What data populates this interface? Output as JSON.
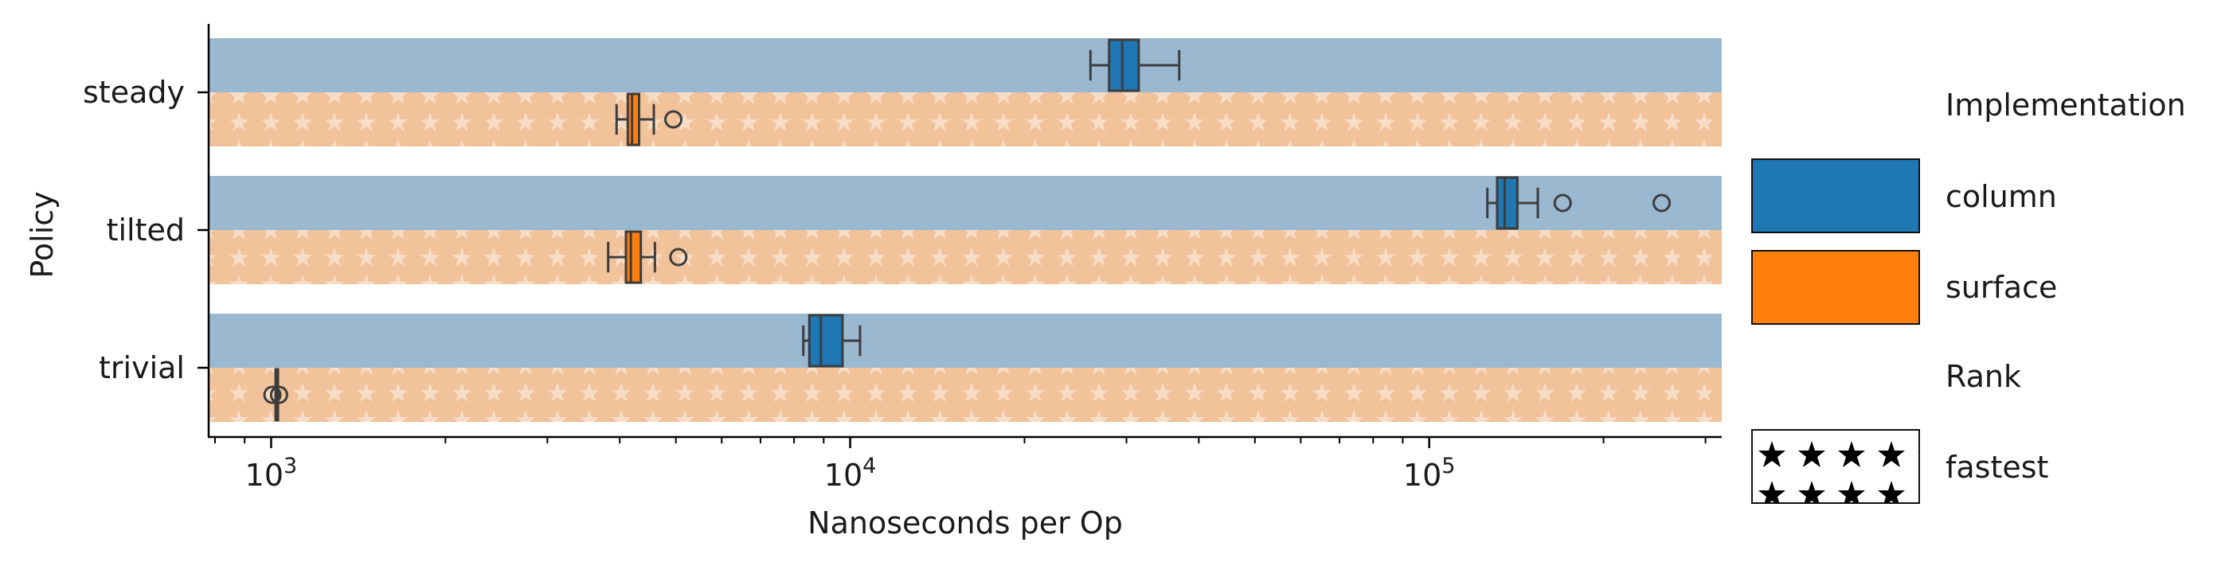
{
  "chart_data": {
    "type": "boxplot",
    "orientation": "horizontal",
    "xlabel": "Nanoseconds per Op",
    "ylabel": "Policy",
    "xscale": "log",
    "xlim": [
      780,
      320000
    ],
    "x_ticks": [
      {
        "value": 1000,
        "base": "10",
        "exp": "3"
      },
      {
        "value": 10000,
        "base": "10",
        "exp": "4"
      },
      {
        "value": 100000,
        "base": "10",
        "exp": "5"
      }
    ],
    "categories": [
      "steady",
      "tilted",
      "trivial"
    ],
    "series": [
      {
        "name": "column",
        "color": "#1f77b4",
        "band_color": "#9ab8d0",
        "boxes": [
          {
            "category": "steady",
            "whislo": 26000,
            "q1": 28000,
            "med": 29500,
            "q3": 31500,
            "whishi": 37000,
            "fliers": []
          },
          {
            "category": "tilted",
            "whislo": 126000,
            "q1": 131000,
            "med": 135000,
            "q3": 142000,
            "whishi": 154000,
            "fliers": [
              170000,
              252000
            ]
          },
          {
            "category": "trivial",
            "whislo": 8300,
            "q1": 8500,
            "med": 8900,
            "q3": 9700,
            "whishi": 10400,
            "fliers": []
          }
        ]
      },
      {
        "name": "surface",
        "color": "#ff7f0e",
        "band_color": "#f2c29a",
        "boxes": [
          {
            "category": "steady",
            "whislo": 3950,
            "q1": 4130,
            "med": 4200,
            "q3": 4320,
            "whishi": 4580,
            "fliers": [
              4950
            ]
          },
          {
            "category": "tilted",
            "whislo": 3820,
            "q1": 4100,
            "med": 4180,
            "q3": 4350,
            "whishi": 4600,
            "fliers": [
              5050
            ]
          },
          {
            "category": "trivial",
            "whislo": 1018,
            "q1": 1018,
            "med": 1020,
            "q3": 1022,
            "whishi": 1025,
            "fliers": [
              1005,
              1032
            ]
          }
        ]
      }
    ],
    "band_pattern": {
      "series": "surface",
      "hatch": "star",
      "hatch_color": "#f7dcc6"
    },
    "legend": {
      "placement": "right",
      "implementation_title": "Implementation",
      "implementation_entries": [
        {
          "label": "column",
          "color": "#1f77b4"
        },
        {
          "label": "surface",
          "color": "#ff7f0e"
        }
      ],
      "rank_title": "Rank",
      "rank_entries": [
        {
          "label": "fastest",
          "hatch": "star"
        }
      ]
    },
    "grid": false
  }
}
